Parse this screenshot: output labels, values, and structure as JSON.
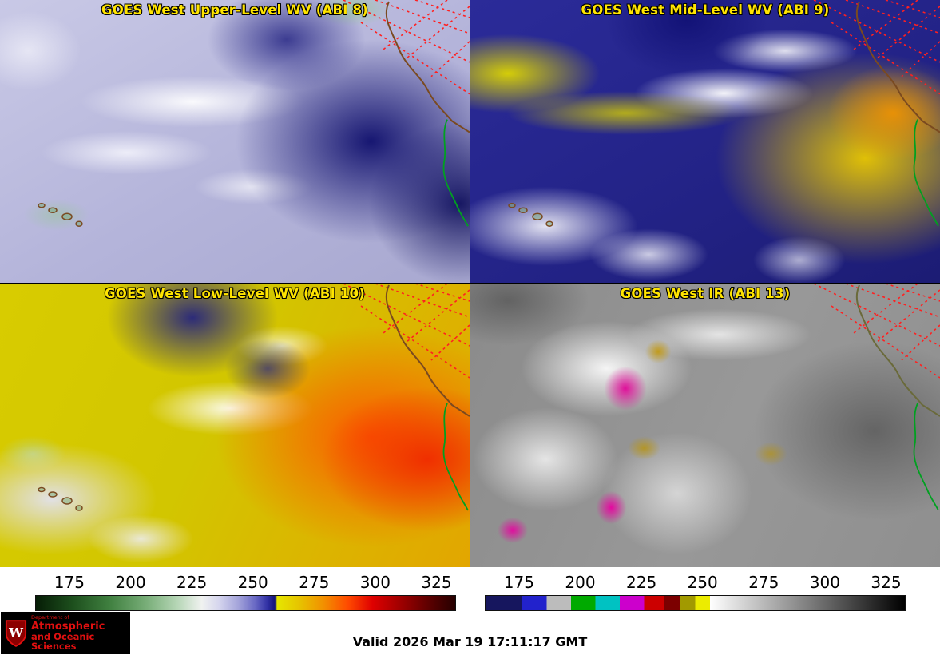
{
  "panels": [
    {
      "title": "GOES West Upper-Level WV (ABI 8)"
    },
    {
      "title": "GOES West Mid-Level WV (ABI 9)"
    },
    {
      "title": "GOES West Low-Level WV (ABI 10)"
    },
    {
      "title": "GOES West IR (ABI 13)"
    }
  ],
  "colorbars": {
    "wv": {
      "range": [
        161,
        333
      ],
      "ticks": [
        175,
        200,
        225,
        250,
        275,
        300,
        325
      ],
      "stops": [
        {
          "v": 161,
          "c": "#061d06"
        },
        {
          "v": 176,
          "c": "#1d4f1d"
        },
        {
          "v": 191,
          "c": "#3f7f3f"
        },
        {
          "v": 206,
          "c": "#77ad77"
        },
        {
          "v": 219,
          "c": "#b6d6b6"
        },
        {
          "v": 229,
          "c": "#f0f2f0"
        },
        {
          "v": 236,
          "c": "#d6d6ee"
        },
        {
          "v": 244,
          "c": "#a4a4da"
        },
        {
          "v": 251,
          "c": "#6868c4"
        },
        {
          "v": 256,
          "c": "#3030a4"
        },
        {
          "v": 259,
          "c": "#14147a"
        },
        {
          "v": 260,
          "c": "#e6e600"
        },
        {
          "v": 269,
          "c": "#e6c400"
        },
        {
          "v": 279,
          "c": "#f29000"
        },
        {
          "v": 289,
          "c": "#ff4a00"
        },
        {
          "v": 299,
          "c": "#df0000"
        },
        {
          "v": 312,
          "c": "#970000"
        },
        {
          "v": 325,
          "c": "#4d0000"
        },
        {
          "v": 333,
          "c": "#260000"
        }
      ]
    },
    "ir": {
      "range": [
        161,
        333
      ],
      "ticks": [
        175,
        200,
        225,
        250,
        275,
        300,
        325
      ],
      "stops": [
        {
          "v": 161,
          "c": "#16165e"
        },
        {
          "v": 176,
          "c": "#16165e"
        },
        {
          "v": 176,
          "c": "#2222cc"
        },
        {
          "v": 186,
          "c": "#2222cc"
        },
        {
          "v": 186,
          "c": "#bcbcbc"
        },
        {
          "v": 196,
          "c": "#bcbcbc"
        },
        {
          "v": 196,
          "c": "#00aa00"
        },
        {
          "v": 206,
          "c": "#00aa00"
        },
        {
          "v": 206,
          "c": "#00c2c2"
        },
        {
          "v": 216,
          "c": "#00c2c2"
        },
        {
          "v": 216,
          "c": "#cc00cc"
        },
        {
          "v": 226,
          "c": "#cc00cc"
        },
        {
          "v": 226,
          "c": "#cc0000"
        },
        {
          "v": 234,
          "c": "#cc0000"
        },
        {
          "v": 234,
          "c": "#7c0000"
        },
        {
          "v": 241,
          "c": "#7c0000"
        },
        {
          "v": 241,
          "c": "#a29a00"
        },
        {
          "v": 247,
          "c": "#a29a00"
        },
        {
          "v": 247,
          "c": "#ecec00"
        },
        {
          "v": 253,
          "c": "#ecec00"
        },
        {
          "v": 253,
          "c": "#ffffff"
        },
        {
          "v": 333,
          "c": "#000000"
        }
      ]
    }
  },
  "footer": {
    "valid_label": "Valid 2026 Mar 19 17:11:17 GMT"
  },
  "logo": {
    "crest_letter": "W",
    "line1": "Department of",
    "line2": "Atmospheric",
    "line3": "and Oceanic Sciences"
  },
  "colors": {
    "title_text": "#ffe400",
    "graticule": "#ff2020",
    "coastline": "#7a4a20",
    "baja_outline": "#00a020",
    "logo_text": "#e01010"
  }
}
